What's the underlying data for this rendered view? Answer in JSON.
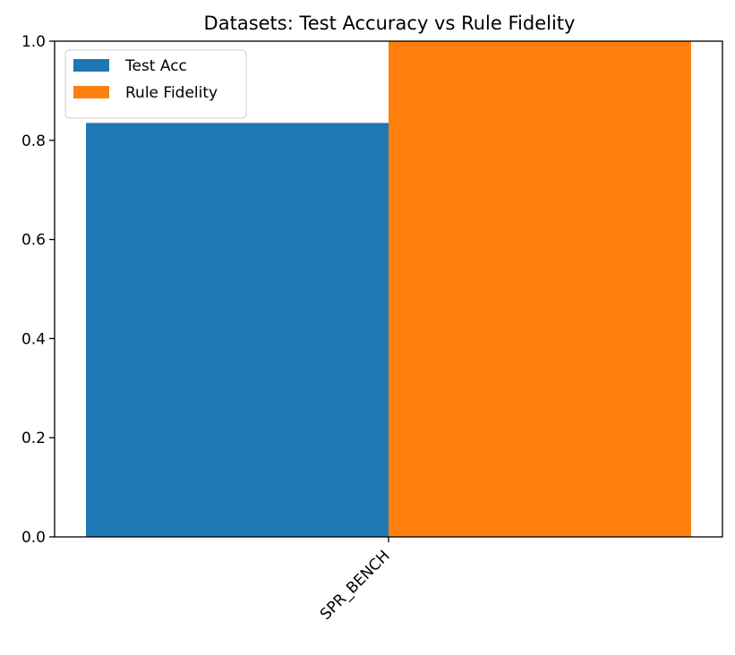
{
  "chart_data": {
    "type": "bar",
    "title": "Datasets: Test Accuracy vs Rule Fidelity",
    "xlabel": "",
    "ylabel": "",
    "categories": [
      "SPR_BENCH"
    ],
    "series": [
      {
        "name": "Test Acc",
        "values": [
          0.835
        ],
        "color": "#1f77b4"
      },
      {
        "name": "Rule Fidelity",
        "values": [
          1.0
        ],
        "color": "#ff7f0e"
      }
    ],
    "ylim": [
      0,
      1.0
    ],
    "yticks": [
      "0.0",
      "0.2",
      "0.4",
      "0.6",
      "0.8",
      "1.0"
    ],
    "grid": false,
    "legend_position": "top-left"
  }
}
